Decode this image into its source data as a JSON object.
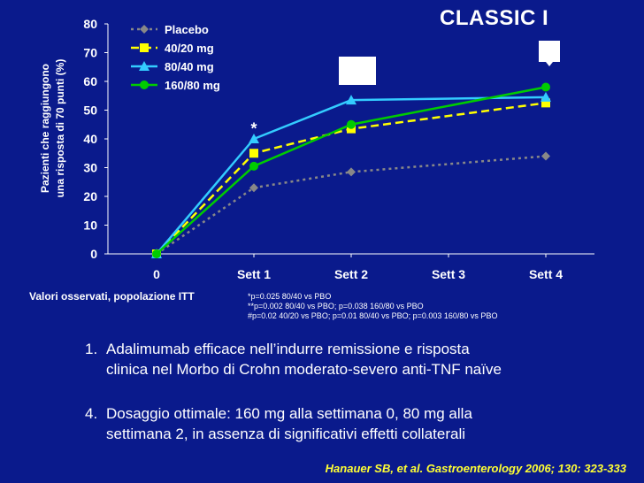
{
  "title": "CLASSIC I",
  "chart_data": {
    "type": "line",
    "categories": [
      "0",
      "Sett 1",
      "Sett 2",
      "Sett 3",
      "Sett 4"
    ],
    "ylabel_line1": "Pazienti che raggiungono",
    "ylabel_line2": "una risposta di 70 punti (%)",
    "ylim": [
      0,
      80
    ],
    "yticks": [
      "0",
      "10",
      "20",
      "30",
      "40",
      "50",
      "60",
      "70",
      "80"
    ],
    "legend_position": "top-left",
    "series": [
      {
        "name": "Placebo",
        "x": [
          0,
          1,
          2,
          4
        ],
        "values": [
          0,
          23,
          28.5,
          34
        ],
        "color": "#888888",
        "marker": "diamond",
        "dash": "3,4"
      },
      {
        "name": "40/20 mg",
        "x": [
          0,
          1,
          2,
          4
        ],
        "values": [
          0,
          35,
          43.5,
          52.5
        ],
        "color": "#ffff00",
        "marker": "square",
        "dash": "9,5"
      },
      {
        "name": "80/40 mg",
        "x": [
          0,
          1,
          2,
          4
        ],
        "values": [
          0,
          40,
          53.5,
          54.5
        ],
        "color": "#33ccff",
        "marker": "triangle",
        "dash": ""
      },
      {
        "name": "160/80 mg",
        "x": [
          0,
          1,
          2,
          4
        ],
        "values": [
          0,
          30.5,
          45,
          58
        ],
        "color": "#00cc00",
        "marker": "circle",
        "dash": ""
      }
    ],
    "annotations": [
      {
        "text": "*",
        "x": 1,
        "y": 43
      }
    ]
  },
  "footnote_label": "Valori osservati, popolazione ITT",
  "footnotes": [
    "*p=0.025 80/40 vs PBO",
    "**p=0.002 80/40 vs PBO; p=0.038 160/80 vs PBO",
    "#p=0.02 40/20 vs PBO; p=0.01 80/40 vs PBO; p=0.003 160/80 vs PBO"
  ],
  "bullets": [
    {
      "num": "1.",
      "line1": "Adalimumab efficace nell’indurre remissione e risposta",
      "line2": "clinica nel Morbo di Crohn moderato-severo anti-TNF naïve"
    },
    {
      "num": "4.",
      "line1": "Dosaggio ottimale: 160 mg alla settimana 0, 80 mg alla",
      "line2": "settimana 2, in assenza di significativi effetti collaterali"
    }
  ],
  "citation": "Hanauer SB, et al. Gastroenterology 2006; 130: 323-333"
}
